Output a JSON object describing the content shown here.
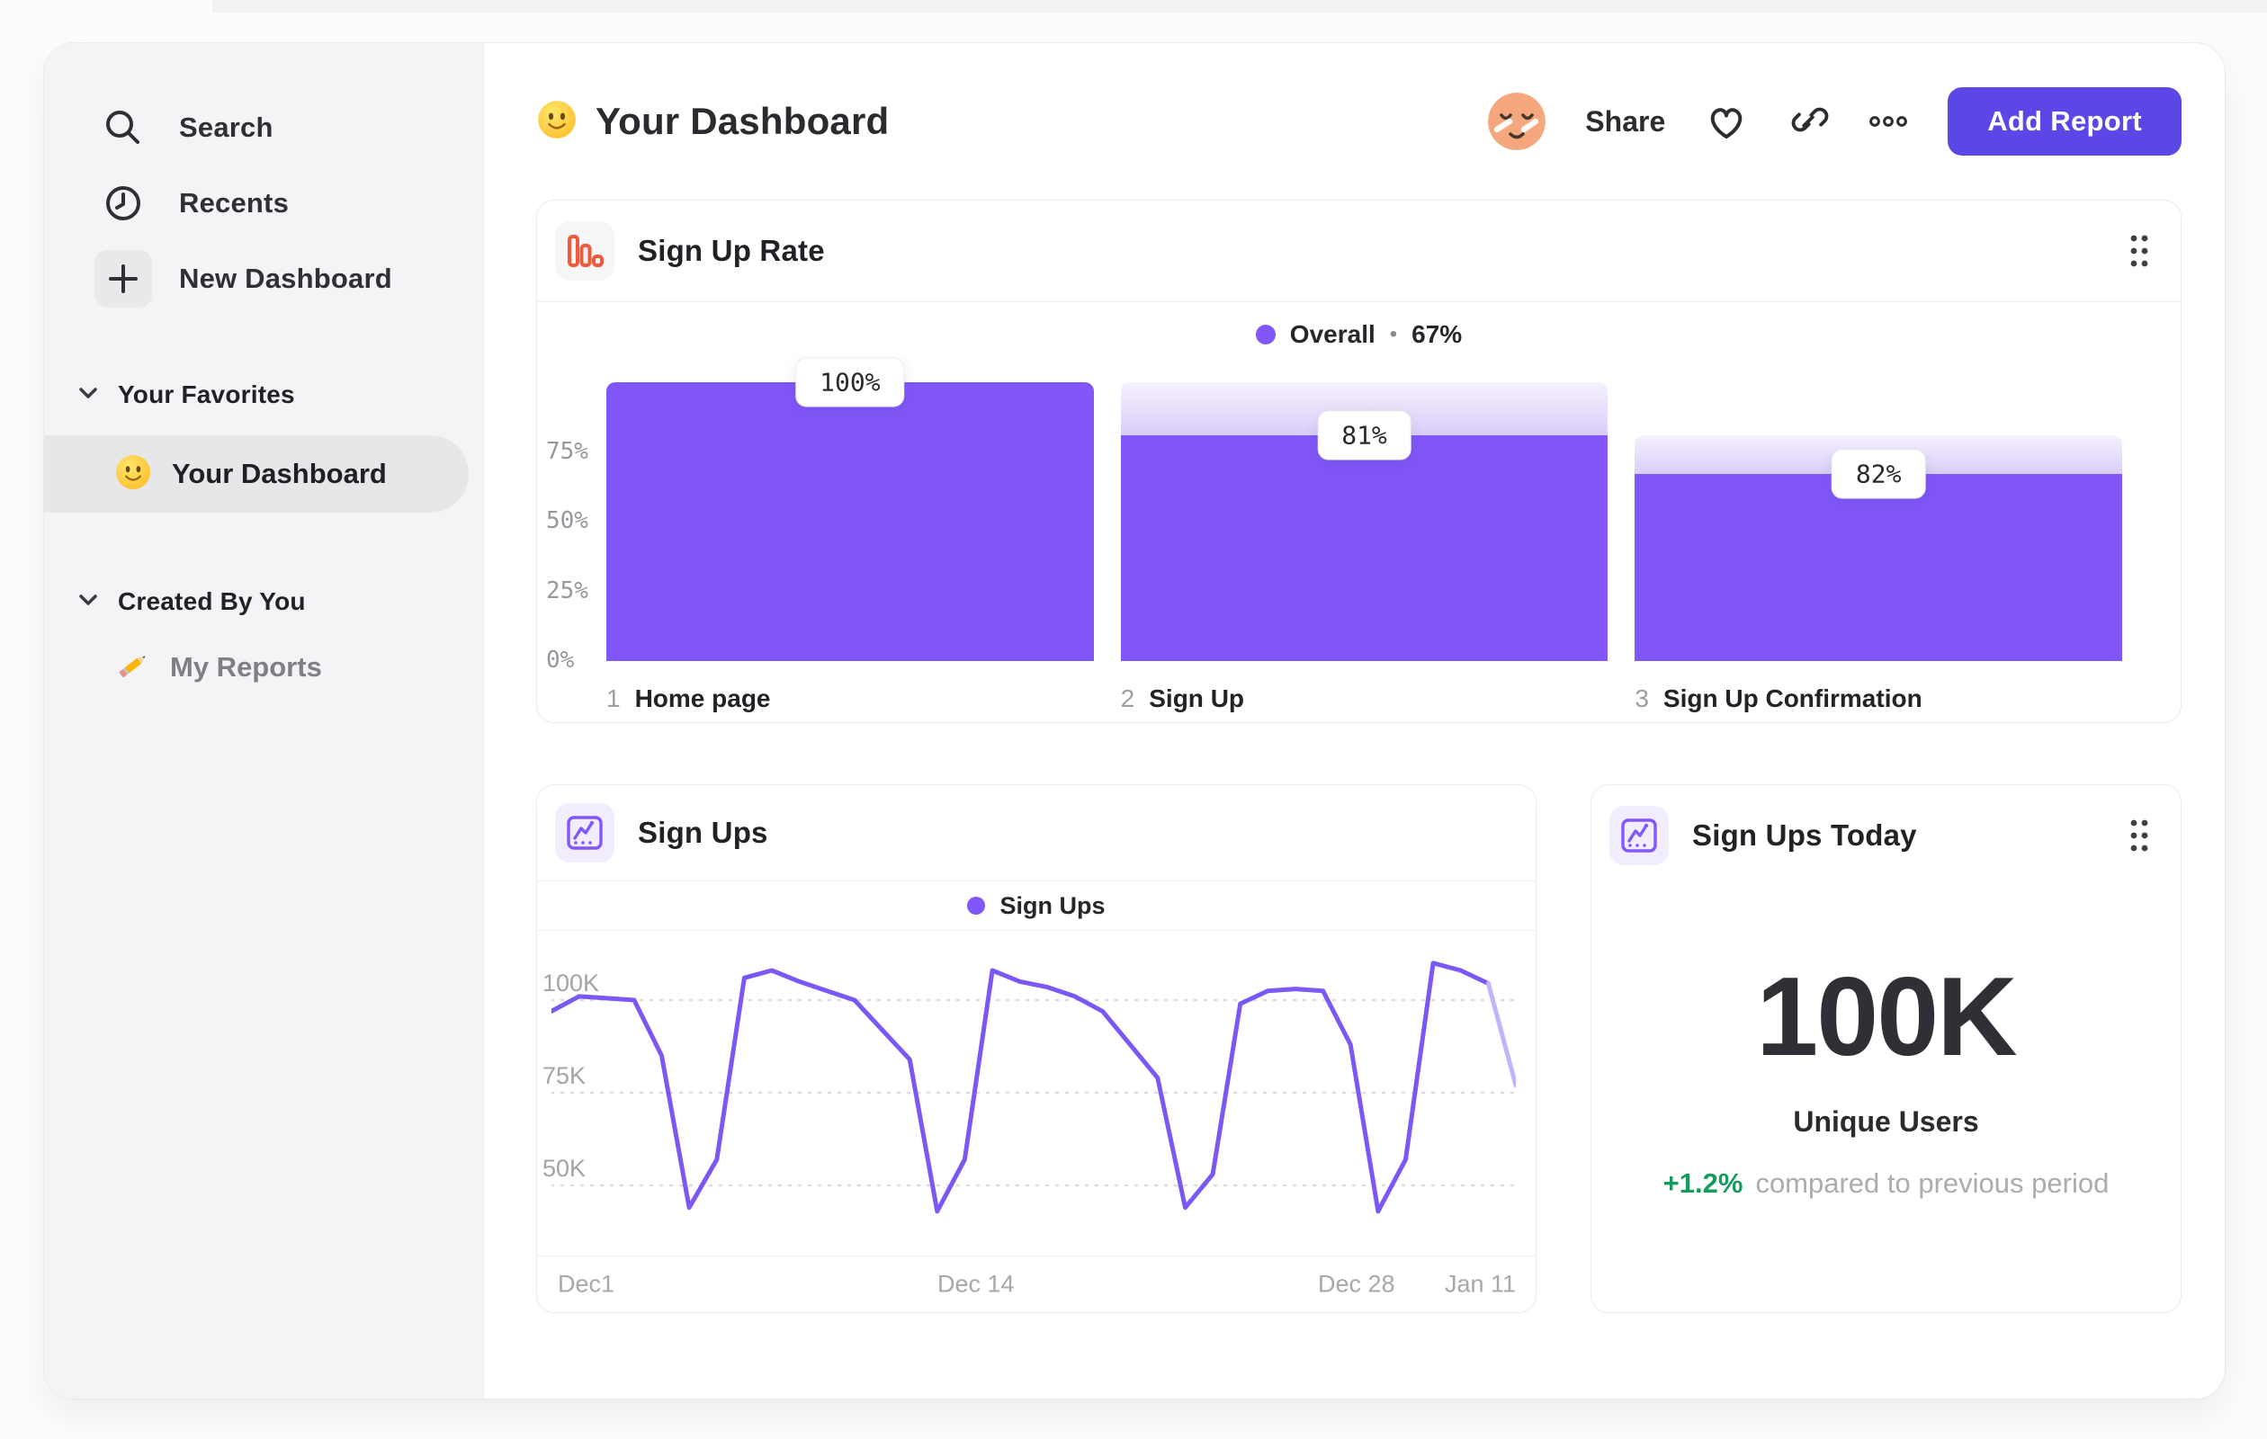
{
  "sidebar": {
    "nav": [
      {
        "id": "search",
        "label": "Search"
      },
      {
        "id": "recents",
        "label": "Recents"
      },
      {
        "id": "new-dashboard",
        "label": "New Dashboard"
      }
    ],
    "sections": [
      {
        "title": "Your Favorites",
        "items": [
          {
            "label": "Your Dashboard",
            "icon": "smiley-emoji",
            "selected": true
          }
        ]
      },
      {
        "title": "Created By You",
        "items": [
          {
            "label": "My Reports",
            "icon": "pencil-emoji",
            "selected": false
          }
        ]
      }
    ]
  },
  "header": {
    "title": "Your Dashboard",
    "actions": {
      "share": "Share",
      "add_report": "Add Report"
    }
  },
  "kpi_card": {
    "title": "Sign Ups Today",
    "value": "100K",
    "unit_label": "Unique Users",
    "change": "+1.2%",
    "change_note": "compared to previous period"
  },
  "chart_data": [
    {
      "type": "bar",
      "variant": "funnel",
      "title": "Sign Up Rate",
      "legend": {
        "series": "Overall",
        "separator": "•",
        "value": "67%"
      },
      "ylim": [
        0,
        100
      ],
      "y_ticks": [
        {
          "label": "75%",
          "value": 75
        },
        {
          "label": "50%",
          "value": 50
        },
        {
          "label": "25%",
          "value": 25
        },
        {
          "label": "0%",
          "value": 0
        }
      ],
      "steps": [
        {
          "index": "1",
          "category": "Home page",
          "tooltip": "100%",
          "step_conversion_pct": 100,
          "bar_total_pct": 100,
          "bar_solid_pct": 100
        },
        {
          "index": "2",
          "category": "Sign Up",
          "tooltip": "81%",
          "step_conversion_pct": 81,
          "bar_total_pct": 100,
          "bar_solid_pct": 81
        },
        {
          "index": "3",
          "category": "Sign Up Confirmation",
          "tooltip": "82%",
          "step_conversion_pct": 82,
          "bar_total_pct": 81,
          "bar_solid_pct": 67
        }
      ]
    },
    {
      "type": "line",
      "title": "Sign Ups",
      "legend": {
        "series": "Sign Ups"
      },
      "x_ticks": [
        "Dec1",
        "Dec 14",
        "Dec 28",
        "Jan 11"
      ],
      "y_ticks": [
        {
          "label": "100K",
          "value": 100
        },
        {
          "label": "75K",
          "value": 75
        },
        {
          "label": "50K",
          "value": 50
        }
      ],
      "ylim_k": [
        40,
        112
      ],
      "unit": "K",
      "values_k": [
        97,
        101,
        100.5,
        100,
        85,
        44,
        57,
        106,
        108,
        105,
        102.5,
        100,
        92,
        84,
        43,
        57,
        108,
        105,
        103.5,
        101,
        97,
        88,
        79,
        44,
        53,
        99,
        102.5,
        103,
        102.5,
        88,
        43,
        57,
        110,
        108,
        104.5,
        77
      ]
    }
  ],
  "colors": {
    "accent_purple": "#8257fa",
    "line_purple": "#7b57f5",
    "line_fade_purple": "#c3b3fa",
    "button_purple": "#5b46e6",
    "icon_orange": "#f0593c",
    "positive_green": "#169a5e"
  }
}
